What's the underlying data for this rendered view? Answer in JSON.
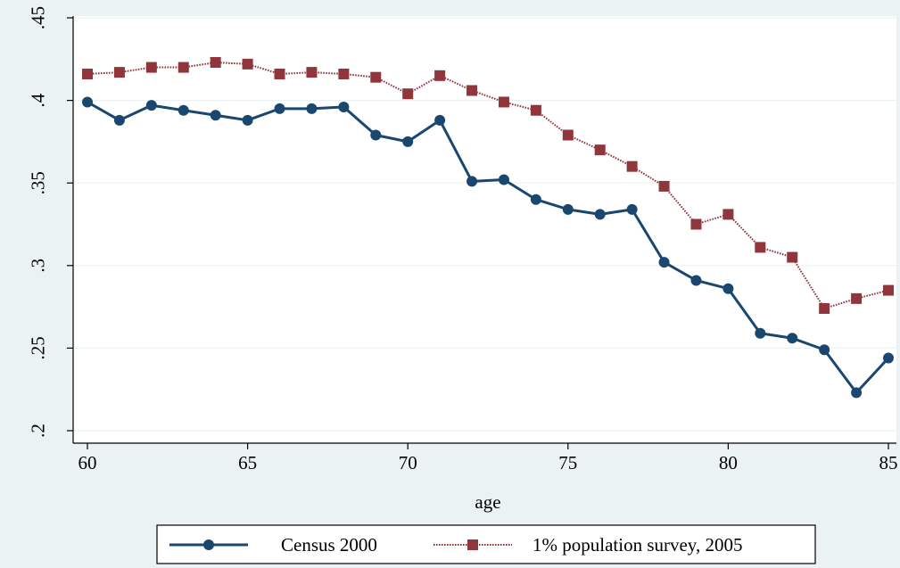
{
  "chart_data": {
    "type": "line",
    "xlabel": "age",
    "ylabel": "",
    "xlim": [
      60,
      85
    ],
    "ylim": [
      0.2,
      0.45
    ],
    "xticks": [
      60,
      65,
      70,
      75,
      80,
      85
    ],
    "xtick_labels": [
      "60",
      "65",
      "70",
      "75",
      "80",
      "85"
    ],
    "yticks": [
      0.2,
      0.25,
      0.3,
      0.35,
      0.4,
      0.45
    ],
    "ytick_labels": [
      ".2",
      ".25",
      ".3",
      ".35",
      ".4",
      ".45"
    ],
    "grid": "horizontal",
    "legend": "bottom",
    "x": [
      60,
      61,
      62,
      63,
      64,
      65,
      66,
      67,
      68,
      69,
      70,
      71,
      72,
      73,
      74,
      75,
      76,
      77,
      78,
      79,
      80,
      81,
      82,
      83,
      84,
      85
    ],
    "series": [
      {
        "name": "Census 2000",
        "color": "#1a476f",
        "marker": "circle",
        "line": "solid",
        "values": [
          0.399,
          0.388,
          0.397,
          0.394,
          0.391,
          0.388,
          0.395,
          0.395,
          0.396,
          0.379,
          0.375,
          0.388,
          0.351,
          0.352,
          0.34,
          0.334,
          0.331,
          0.334,
          0.302,
          0.291,
          0.286,
          0.259,
          0.256,
          0.249,
          0.223,
          0.244
        ]
      },
      {
        "name": "1% population survey, 2005",
        "color": "#90353b",
        "marker": "square",
        "line": "dotted",
        "values": [
          0.416,
          0.417,
          0.42,
          0.42,
          0.423,
          0.422,
          0.416,
          0.417,
          0.416,
          0.414,
          0.404,
          0.415,
          0.406,
          0.399,
          0.394,
          0.379,
          0.37,
          0.36,
          0.348,
          0.325,
          0.331,
          0.311,
          0.305,
          0.274,
          0.28,
          0.285
        ]
      }
    ]
  }
}
